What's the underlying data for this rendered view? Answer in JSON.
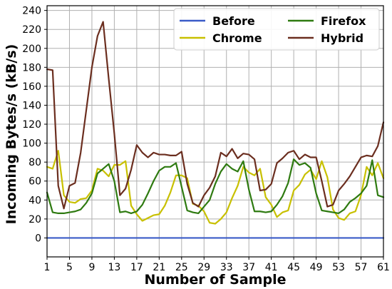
{
  "chart_data": {
    "type": "line",
    "xlabel": "Number of Sample",
    "ylabel": "Incoming Bytes/s (kB/s)",
    "xlim": [
      1,
      61
    ],
    "ylim": [
      -20,
      245
    ],
    "xticks": [
      "1",
      "5",
      "9",
      "13",
      "17",
      "21",
      "25",
      "29",
      "33",
      "37",
      "41",
      "45",
      "49",
      "53",
      "57",
      "61"
    ],
    "yticks": [
      "0",
      "20",
      "40",
      "60",
      "80",
      "100",
      "120",
      "140",
      "160",
      "180",
      "200",
      "220",
      "240"
    ],
    "grid": true,
    "legend_position": "top-right",
    "series": [
      {
        "name": "Before",
        "color": "#3a5bc7",
        "values": [
          0,
          0,
          0,
          0,
          0,
          0,
          0,
          0,
          0,
          0,
          0,
          0,
          0,
          0,
          0,
          0,
          0,
          0,
          0,
          0,
          0,
          0,
          0,
          0,
          0,
          0,
          0,
          0,
          0,
          0,
          0,
          0,
          0,
          0,
          0,
          0,
          0,
          0,
          0,
          0,
          0,
          0,
          0,
          0,
          0,
          0,
          0,
          0,
          0,
          0,
          0,
          0,
          0,
          0,
          0,
          0,
          0,
          0,
          0,
          0,
          0
        ]
      },
      {
        "name": "Chrome",
        "color": "#c8c000",
        "values": [
          75,
          73,
          92,
          45,
          38,
          37,
          41,
          42,
          50,
          73,
          71,
          65,
          77,
          77,
          81,
          34,
          25,
          18,
          21,
          24,
          25,
          34,
          48,
          66,
          66,
          63,
          36,
          34,
          28,
          16,
          15,
          20,
          27,
          42,
          55,
          75,
          69,
          66,
          73,
          43,
          35,
          22,
          27,
          29,
          50,
          56,
          67,
          72,
          62,
          81,
          64,
          30,
          21,
          19,
          26,
          28,
          45,
          75,
          66,
          79,
          63
        ]
      },
      {
        "name": "Firefox",
        "color": "#2e7a10",
        "values": [
          48,
          27,
          26,
          26,
          27,
          28,
          30,
          37,
          47,
          68,
          73,
          78,
          60,
          27,
          28,
          26,
          28,
          35,
          47,
          60,
          71,
          75,
          75,
          79,
          54,
          29,
          27,
          26,
          33,
          40,
          57,
          70,
          78,
          73,
          70,
          81,
          51,
          28,
          28,
          27,
          28,
          35,
          44,
          58,
          83,
          77,
          79,
          74,
          47,
          29,
          28,
          27,
          26,
          30,
          38,
          42,
          47,
          55,
          82,
          45,
          43
        ]
      },
      {
        "name": "Hybrid",
        "color": "#6b2e1f",
        "values": [
          178,
          177,
          55,
          31,
          55,
          58,
          90,
          135,
          180,
          213,
          228,
          168,
          110,
          45,
          52,
          72,
          98,
          90,
          85,
          90,
          88,
          88,
          87,
          87,
          91,
          57,
          37,
          33,
          45,
          53,
          65,
          90,
          86,
          94,
          84,
          89,
          88,
          83,
          50,
          51,
          57,
          79,
          84,
          90,
          92,
          83,
          88,
          85,
          85,
          60,
          33,
          35,
          50,
          57,
          65,
          75,
          85,
          87,
          86,
          97,
          122
        ]
      }
    ]
  }
}
